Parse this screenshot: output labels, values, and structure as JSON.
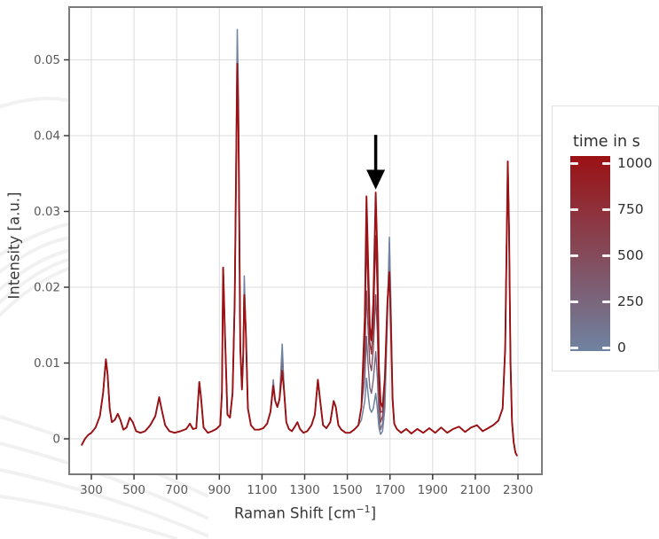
{
  "figure": {
    "background": "#ffffff",
    "plot": {
      "frame_color": "#7b7b7b",
      "grid_color": "#dcdcdc",
      "tick_color": "#3a3a3a",
      "tick_label_color": "#595959",
      "axis_label_color": "#383838"
    },
    "x_axis": {
      "title_prefix": "Raman Shift [cm",
      "title_sup": "−1",
      "title_suffix": "]",
      "tick_labels": [
        "300",
        "500",
        "700",
        "900",
        "1100",
        "1300",
        "1500",
        "1700",
        "1900",
        "2100",
        "2300"
      ]
    },
    "y_axis": {
      "title": "Intensity [a.u.]",
      "tick_labels": [
        "0",
        "0.01",
        "0.02",
        "0.03",
        "0.04",
        "0.05"
      ]
    }
  },
  "legend": {
    "title": "time in s",
    "tick_labels": [
      "1000",
      "750",
      "500",
      "250",
      "0"
    ],
    "gradient": [
      "#9b1114",
      "#854a5a",
      "#6f83a1"
    ],
    "border_color": "#e0e0e0",
    "text_color": "#2f2f2f"
  },
  "annotation": {
    "type": "arrow-down",
    "color": "#000000",
    "x_shift": 1633,
    "y_top": 0.0401,
    "y_head_start": 0.0355,
    "y_tip": 0.0329,
    "points_at": "growing peak near 1630 cm^-1"
  },
  "chart_data": {
    "type": "line",
    "title": "",
    "xlabel": "Raman Shift [cm^-1]",
    "ylabel": "Intensity [a.u.]",
    "xlim": [
      196,
      2412
    ],
    "ylim": [
      -0.0047,
      0.057
    ],
    "grid": true,
    "x_ticks": [
      300,
      500,
      700,
      900,
      1100,
      1300,
      1500,
      1700,
      1900,
      2100,
      2300
    ],
    "y_ticks": [
      0,
      0.01,
      0.02,
      0.03,
      0.04,
      0.05
    ],
    "legend_title": "time in s",
    "colormap": {
      "min_value": 0,
      "max_value": 1000,
      "min_color": "#6f83a1",
      "mid_color": "#854a5a",
      "max_color": "#9b1114"
    },
    "base_points": [
      [
        255,
        -0.0008
      ],
      [
        270,
        0
      ],
      [
        285,
        0.0005
      ],
      [
        300,
        0.0008
      ],
      [
        320,
        0.0015
      ],
      [
        340,
        0.003
      ],
      [
        355,
        0.006
      ],
      [
        368,
        0.0105
      ],
      [
        376,
        0.0085
      ],
      [
        386,
        0.004
      ],
      [
        396,
        0.0022
      ],
      [
        410,
        0.0025
      ],
      [
        424,
        0.0033
      ],
      [
        436,
        0.0025
      ],
      [
        450,
        0.0012
      ],
      [
        465,
        0.0015
      ],
      [
        480,
        0.0028
      ],
      [
        494,
        0.0022
      ],
      [
        510,
        0.001
      ],
      [
        530,
        0.0008
      ],
      [
        552,
        0.001
      ],
      [
        576,
        0.0018
      ],
      [
        600,
        0.003
      ],
      [
        618,
        0.0055
      ],
      [
        630,
        0.0038
      ],
      [
        646,
        0.0018
      ],
      [
        666,
        0.001
      ],
      [
        690,
        0.0008
      ],
      [
        718,
        0.001
      ],
      [
        745,
        0.0013
      ],
      [
        762,
        0.002
      ],
      [
        776,
        0.0013
      ],
      [
        792,
        0.0014
      ],
      [
        806,
        0.0075
      ],
      [
        814,
        0.0055
      ],
      [
        826,
        0.0015
      ],
      [
        846,
        0.0008
      ],
      [
        866,
        0.001
      ],
      [
        886,
        0.0013
      ],
      [
        904,
        0.0018
      ],
      [
        912,
        0.006
      ],
      [
        918,
        0.0226
      ],
      [
        926,
        0.014
      ],
      [
        938,
        0.0032
      ],
      [
        950,
        0.0028
      ],
      [
        962,
        0.006
      ],
      [
        972,
        0.018
      ],
      [
        984,
        0.0495
      ],
      [
        990,
        0.0405
      ],
      [
        998,
        0.012
      ],
      [
        1006,
        0.0065
      ],
      [
        1012,
        0.011
      ],
      [
        1017,
        0.019
      ],
      [
        1024,
        0.0145
      ],
      [
        1034,
        0.004
      ],
      [
        1048,
        0.0018
      ],
      [
        1066,
        0.0012
      ],
      [
        1086,
        0.0012
      ],
      [
        1106,
        0.0014
      ],
      [
        1124,
        0.002
      ],
      [
        1140,
        0.0036
      ],
      [
        1153,
        0.007
      ],
      [
        1162,
        0.005
      ],
      [
        1172,
        0.0042
      ],
      [
        1182,
        0.0052
      ],
      [
        1195,
        0.009
      ],
      [
        1204,
        0.0062
      ],
      [
        1214,
        0.0022
      ],
      [
        1226,
        0.0013
      ],
      [
        1240,
        0.001
      ],
      [
        1254,
        0.0016
      ],
      [
        1266,
        0.0022
      ],
      [
        1278,
        0.0013
      ],
      [
        1294,
        0.0008
      ],
      [
        1312,
        0.001
      ],
      [
        1332,
        0.0018
      ],
      [
        1348,
        0.0032
      ],
      [
        1362,
        0.0078
      ],
      [
        1372,
        0.0052
      ],
      [
        1386,
        0.0018
      ],
      [
        1402,
        0.0014
      ],
      [
        1420,
        0.0022
      ],
      [
        1436,
        0.005
      ],
      [
        1446,
        0.0042
      ],
      [
        1458,
        0.0018
      ],
      [
        1472,
        0.0012
      ],
      [
        1492,
        0.0008
      ],
      [
        1512,
        0.0008
      ],
      [
        1532,
        0.0012
      ],
      [
        1552,
        0.0018
      ],
      [
        1566,
        0.0042
      ],
      [
        1582,
        0.016
      ],
      [
        1590,
        0.032
      ],
      [
        1597,
        0.024
      ],
      [
        1605,
        0.0148
      ],
      [
        1613,
        0.013
      ],
      [
        1622,
        0.018
      ],
      [
        1633,
        0.0325
      ],
      [
        1641,
        0.024
      ],
      [
        1648,
        0.0095
      ],
      [
        1656,
        0.0048
      ],
      [
        1665,
        0.0042
      ],
      [
        1676,
        0.008
      ],
      [
        1688,
        0.018
      ],
      [
        1697,
        0.022
      ],
      [
        1704,
        0.0148
      ],
      [
        1712,
        0.0052
      ],
      [
        1720,
        0.002
      ],
      [
        1732,
        0.0013
      ],
      [
        1752,
        0.0008
      ],
      [
        1776,
        0.0013
      ],
      [
        1800,
        0.0007
      ],
      [
        1828,
        0.0013
      ],
      [
        1856,
        0.0008
      ],
      [
        1884,
        0.0014
      ],
      [
        1912,
        0.0008
      ],
      [
        1940,
        0.0015
      ],
      [
        1968,
        0.0008
      ],
      [
        1996,
        0.0013
      ],
      [
        2024,
        0.0016
      ],
      [
        2052,
        0.0009
      ],
      [
        2080,
        0.0015
      ],
      [
        2108,
        0.0018
      ],
      [
        2134,
        0.001
      ],
      [
        2160,
        0.0014
      ],
      [
        2184,
        0.0018
      ],
      [
        2208,
        0.0024
      ],
      [
        2228,
        0.004
      ],
      [
        2240,
        0.012
      ],
      [
        2252,
        0.0366
      ],
      [
        2258,
        0.028
      ],
      [
        2265,
        0.01
      ],
      [
        2272,
        0.0022
      ],
      [
        2280,
        -0.0005
      ],
      [
        2288,
        -0.0018
      ],
      [
        2295,
        -0.0022
      ]
    ],
    "series": [
      {
        "name": "250",
        "time_s": 250,
        "color": "#7a667e",
        "width": 1.4,
        "overrides": [
          [
            984,
            0.0505
          ],
          [
            1017,
            0.0205
          ],
          [
            1195,
            0.0115
          ],
          [
            1582,
            0.008
          ],
          [
            1590,
            0.0135
          ],
          [
            1597,
            0.01
          ],
          [
            1605,
            0.0068
          ],
          [
            1613,
            0.006
          ],
          [
            1622,
            0.0078
          ],
          [
            1633,
            0.0115
          ],
          [
            1641,
            0.008
          ],
          [
            1648,
            0.003
          ],
          [
            1656,
            0.0012
          ],
          [
            1665,
            0.002
          ],
          [
            1676,
            0.0055
          ],
          [
            1688,
            0.016
          ],
          [
            1697,
            0.0258
          ],
          [
            1704,
            0.017
          ],
          [
            1712,
            0.0055
          ]
        ]
      },
      {
        "name": "500",
        "time_s": 500,
        "color": "#854a5a",
        "width": 1.4,
        "overrides": [
          [
            984,
            0.05
          ],
          [
            1017,
            0.02
          ],
          [
            1195,
            0.0108
          ],
          [
            1582,
            0.011
          ],
          [
            1590,
            0.0195
          ],
          [
            1597,
            0.0148
          ],
          [
            1605,
            0.01
          ],
          [
            1613,
            0.009
          ],
          [
            1622,
            0.0118
          ],
          [
            1633,
            0.019
          ],
          [
            1641,
            0.014
          ],
          [
            1648,
            0.0058
          ],
          [
            1656,
            0.0022
          ],
          [
            1665,
            0.003
          ],
          [
            1676,
            0.0068
          ],
          [
            1688,
            0.017
          ],
          [
            1697,
            0.0248
          ],
          [
            1704,
            0.016
          ]
        ]
      },
      {
        "name": "750",
        "time_s": 750,
        "color": "#902d37",
        "width": 1.4,
        "overrides": [
          [
            1582,
            0.014
          ],
          [
            1590,
            0.0265
          ],
          [
            1597,
            0.02
          ],
          [
            1605,
            0.0128
          ],
          [
            1613,
            0.0112
          ],
          [
            1622,
            0.015
          ],
          [
            1633,
            0.0268
          ],
          [
            1641,
            0.019
          ],
          [
            1648,
            0.008
          ],
          [
            1656,
            0.0035
          ],
          [
            1665,
            0.0036
          ],
          [
            1697,
            0.0232
          ]
        ]
      },
      {
        "name": "0",
        "time_s": 0,
        "color": "#6f83a1",
        "width": 1.5,
        "overrides": [
          [
            984,
            0.054
          ],
          [
            990,
            0.045
          ],
          [
            1017,
            0.0215
          ],
          [
            1153,
            0.0078
          ],
          [
            1195,
            0.0125
          ],
          [
            1566,
            0.0025
          ],
          [
            1582,
            0.005
          ],
          [
            1590,
            0.008
          ],
          [
            1597,
            0.006
          ],
          [
            1605,
            0.004
          ],
          [
            1613,
            0.0035
          ],
          [
            1622,
            0.004
          ],
          [
            1633,
            0.006
          ],
          [
            1641,
            0.004
          ],
          [
            1648,
            0.0015
          ],
          [
            1656,
            0.0006
          ],
          [
            1665,
            0.001
          ],
          [
            1676,
            0.004
          ],
          [
            1688,
            0.016
          ],
          [
            1697,
            0.0266
          ],
          [
            1704,
            0.018
          ],
          [
            1712,
            0.006
          ]
        ]
      },
      {
        "name": "1000",
        "time_s": 1000,
        "color": "#9b1114",
        "width": 1.9,
        "overrides": []
      }
    ]
  }
}
